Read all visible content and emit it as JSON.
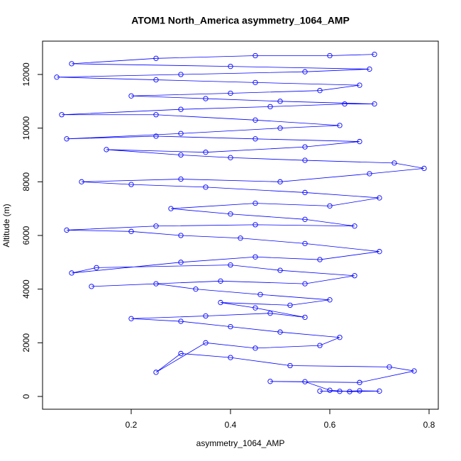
{
  "chart_data": {
    "type": "line",
    "title": "ATOM1 North_America asymmetry_1064_AMP",
    "xlabel": "asymmetry_1064_AMP",
    "ylabel": "Altitude (m)",
    "xlim": [
      0.0214,
      0.8186
    ],
    "ylim": [
      -476,
      13242
    ],
    "xticks": [
      0.2,
      0.4,
      0.6,
      0.8
    ],
    "yticks": [
      0,
      2000,
      4000,
      6000,
      8000,
      10000,
      12000
    ],
    "markers": true,
    "grid": false,
    "series": [
      {
        "color": "#0000ff",
        "x": [
          0.58,
          0.62,
          0.66,
          0.7,
          0.64,
          0.6,
          0.55,
          0.48,
          0.66,
          0.77,
          0.72,
          0.52,
          0.4,
          0.3,
          0.25,
          0.35,
          0.45,
          0.58,
          0.62,
          0.5,
          0.4,
          0.3,
          0.2,
          0.35,
          0.48,
          0.55,
          0.45,
          0.38,
          0.52,
          0.6,
          0.46,
          0.33,
          0.25,
          0.12,
          0.38,
          0.55,
          0.65,
          0.5,
          0.4,
          0.13,
          0.08,
          0.3,
          0.45,
          0.58,
          0.7,
          0.55,
          0.42,
          0.3,
          0.2,
          0.07,
          0.25,
          0.45,
          0.65,
          0.55,
          0.4,
          0.28,
          0.45,
          0.6,
          0.7,
          0.55,
          0.35,
          0.2,
          0.1,
          0.3,
          0.5,
          0.68,
          0.79,
          0.73,
          0.55,
          0.4,
          0.3,
          0.15,
          0.35,
          0.55,
          0.66,
          0.45,
          0.25,
          0.07,
          0.3,
          0.5,
          0.62,
          0.45,
          0.25,
          0.06,
          0.3,
          0.48,
          0.63,
          0.69,
          0.5,
          0.35,
          0.2,
          0.4,
          0.58,
          0.66,
          0.45,
          0.25,
          0.05,
          0.3,
          0.55,
          0.68,
          0.4,
          0.08,
          0.25,
          0.45,
          0.6,
          0.69
        ],
        "values": [
          200,
          190,
          210,
          200,
          180,
          230,
          550,
          560,
          520,
          950,
          1100,
          1150,
          1450,
          1600,
          900,
          2000,
          1800,
          1900,
          2200,
          2400,
          2600,
          2800,
          2900,
          3000,
          3100,
          2950,
          3300,
          3500,
          3400,
          3600,
          3800,
          4000,
          4200,
          4100,
          4300,
          4200,
          4500,
          4700,
          4900,
          4800,
          4600,
          5000,
          5200,
          5100,
          5400,
          5700,
          5900,
          6000,
          6150,
          6200,
          6350,
          6400,
          6350,
          6600,
          6800,
          7000,
          7200,
          7100,
          7400,
          7600,
          7800,
          7900,
          8000,
          8100,
          8000,
          8300,
          8500,
          8700,
          8800,
          8900,
          9000,
          9200,
          9100,
          9300,
          9500,
          9600,
          9700,
          9600,
          9800,
          10000,
          10100,
          10300,
          10500,
          10500,
          10700,
          10800,
          10900,
          10900,
          11000,
          11100,
          11200,
          11300,
          11400,
          11600,
          11700,
          11800,
          11900,
          12000,
          12100,
          12200,
          12300,
          12400,
          12600,
          12700,
          12700,
          12750
        ]
      }
    ]
  }
}
